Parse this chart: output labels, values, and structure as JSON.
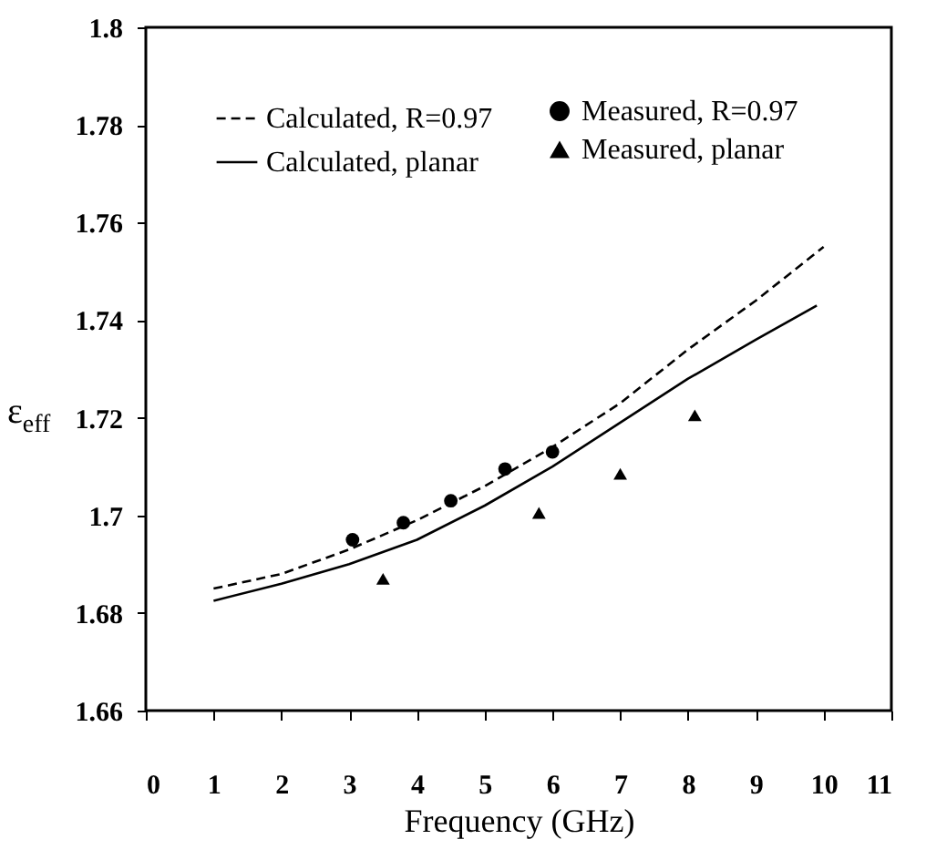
{
  "chart_data": {
    "type": "line",
    "xlabel": "Frequency (GHz)",
    "ylabel": "ε$_{eff}$",
    "xlim": [
      0,
      11
    ],
    "xticks": [
      0,
      1,
      2,
      3,
      4,
      5,
      6,
      7,
      8,
      9,
      10,
      11
    ],
    "ylim": [
      1.66,
      1.8
    ],
    "yticks": [
      1.66,
      1.68,
      1.7,
      1.72,
      1.74,
      1.76,
      1.78,
      1.8
    ],
    "grid": false,
    "legend": "top left",
    "series": [
      {
        "name": "Calculated, R=0.97",
        "line_style": "dashed",
        "marker": "none",
        "color": "#000000",
        "x": [
          1,
          2,
          3,
          4,
          5,
          6,
          7,
          8,
          9,
          10
        ],
        "values": [
          1.685,
          1.688,
          1.693,
          1.699,
          1.706,
          1.714,
          1.723,
          1.734,
          1.744,
          1.755
        ]
      },
      {
        "name": "Calculated, planar",
        "line_style": "solid",
        "marker": "none",
        "color": "#000000",
        "x": [
          1,
          2,
          3,
          4,
          5,
          6,
          7,
          8,
          9,
          9.9
        ],
        "values": [
          1.6825,
          1.686,
          1.69,
          1.695,
          1.702,
          1.71,
          1.719,
          1.728,
          1.736,
          1.743
        ]
      },
      {
        "name": "Measured, R=0.97",
        "type": "scatter",
        "marker": "circle",
        "color": "#000000",
        "x": [
          3.05,
          3.8,
          4.5,
          5.3,
          6.0
        ],
        "values": [
          1.695,
          1.6985,
          1.703,
          1.7095,
          1.713
        ]
      },
      {
        "name": "Measured, planar",
        "type": "scatter",
        "marker": "triangle",
        "color": "#000000",
        "x": [
          3.5,
          5.8,
          7.0,
          8.1
        ],
        "values": [
          1.687,
          1.7005,
          1.7085,
          1.7205
        ]
      }
    ]
  }
}
